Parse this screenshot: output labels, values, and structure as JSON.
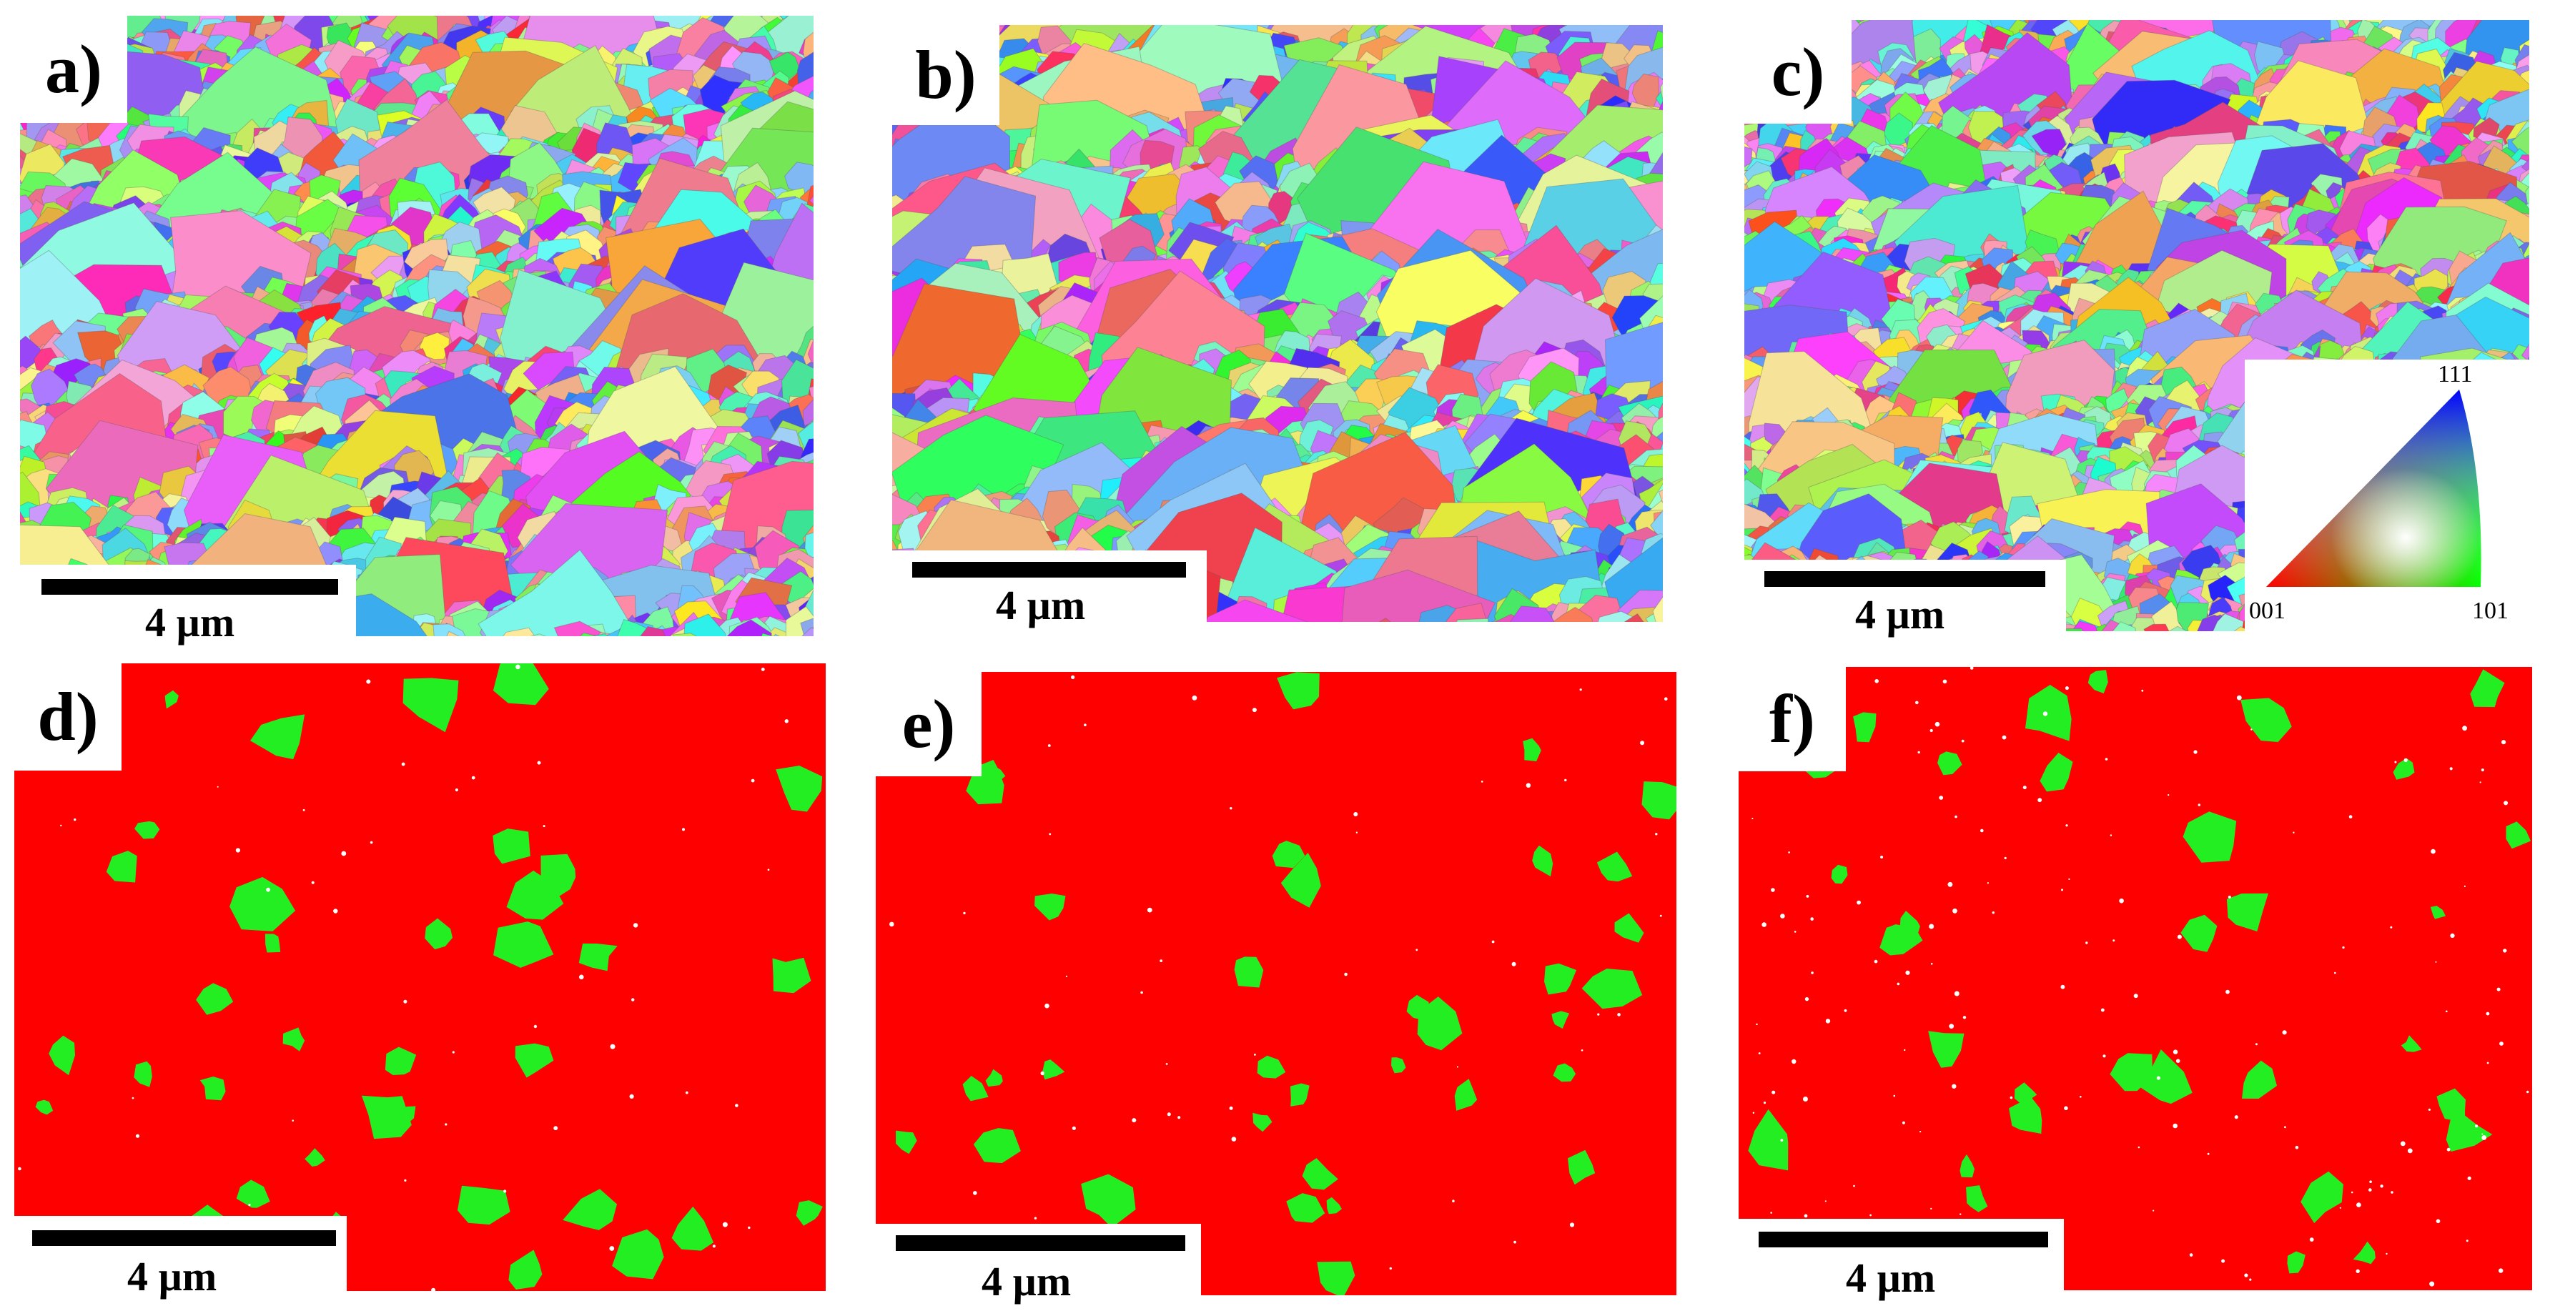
{
  "panels": [
    {
      "label": "a)",
      "scale": "4 µm",
      "type": "ipf",
      "seed": 11
    },
    {
      "label": "b)",
      "scale": "4 µm",
      "type": "ipf",
      "seed": 23
    },
    {
      "label": "c)",
      "scale": "4 µm",
      "type": "ipf",
      "seed": 37
    },
    {
      "label": "d)",
      "scale": "4 µm",
      "type": "phase",
      "seed": 41
    },
    {
      "label": "e)",
      "scale": "4 µm",
      "type": "phase",
      "seed": 53
    },
    {
      "label": "f)",
      "scale": "4 µm",
      "type": "phase",
      "seed": 67
    }
  ],
  "ipf_legend": {
    "top": "111",
    "left": "001",
    "right": "101"
  },
  "colors": {
    "phase_matrix": "#ff0000",
    "phase_second": "#22ee22",
    "background": "#ffffff"
  }
}
